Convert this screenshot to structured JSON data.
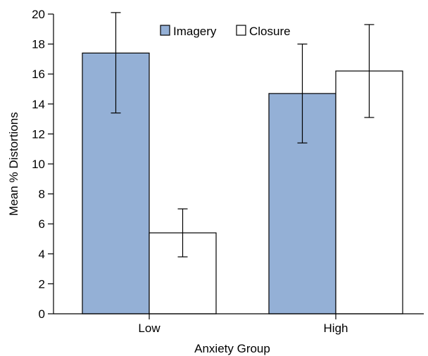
{
  "chart_data": {
    "type": "bar",
    "categories": [
      "Low",
      "High"
    ],
    "series": [
      {
        "name": "Imagery",
        "values": [
          17.4,
          14.7
        ],
        "err_low": [
          13.4,
          11.4
        ],
        "err_high": [
          20.1,
          18.0
        ],
        "color": "#94b0d6"
      },
      {
        "name": "Closure",
        "values": [
          5.4,
          16.2
        ],
        "err_low": [
          3.8,
          13.1
        ],
        "err_high": [
          7.0,
          19.3
        ],
        "color": "#ffffff"
      }
    ],
    "xlabel": "Anxiety Group",
    "ylabel": "Mean % Distortions",
    "ylim": [
      0,
      20
    ],
    "yticks": [
      0,
      2,
      4,
      6,
      8,
      10,
      12,
      14,
      16,
      18,
      20
    ],
    "ytick_labels": [
      "0",
      "2",
      "4",
      "6",
      "8",
      "10",
      "12",
      "14",
      "16",
      "18",
      "20"
    ],
    "grid": false,
    "legend_position": "top-center"
  }
}
